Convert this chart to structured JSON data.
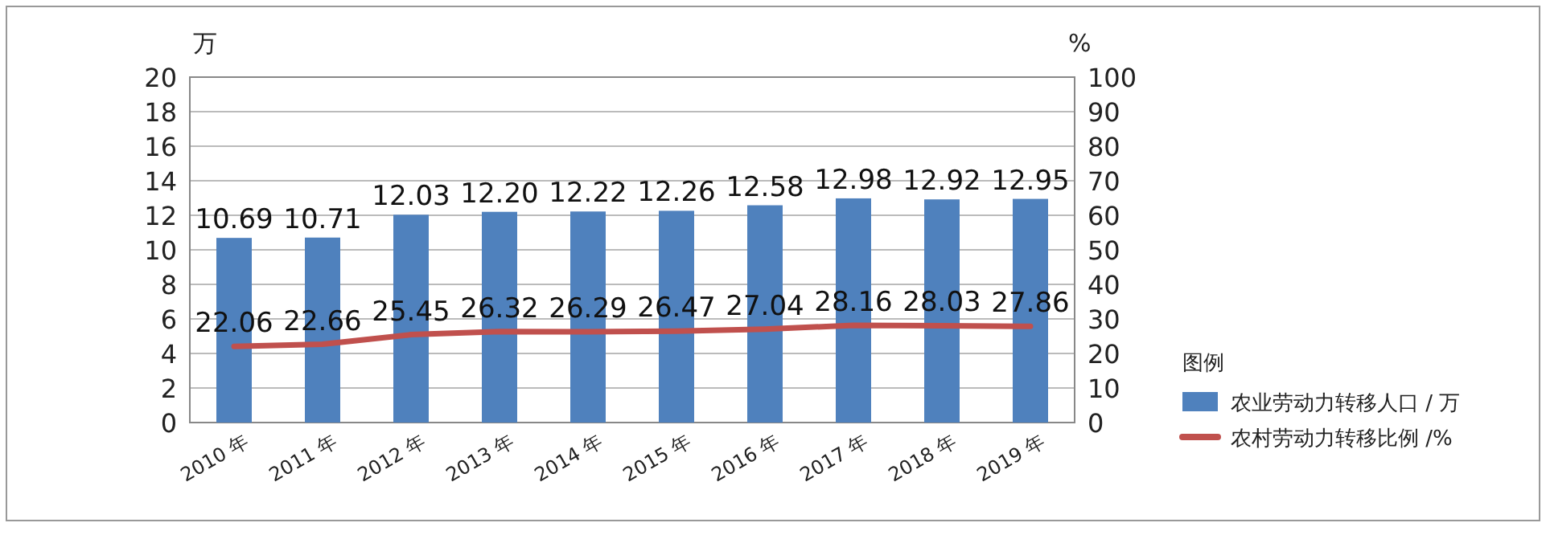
{
  "chart_data": {
    "type": "bar",
    "categories": [
      "2010 年",
      "2011 年",
      "2012 年",
      "2013 年",
      "2014 年",
      "2015 年",
      "2016 年",
      "2017 年",
      "2018 年",
      "2019 年"
    ],
    "ylabel": "万",
    "y2label": "%",
    "ylim": [
      0,
      20
    ],
    "yticks": [
      0,
      2,
      4,
      6,
      8,
      10,
      12,
      14,
      16,
      18,
      20
    ],
    "y2lim": [
      0,
      100
    ],
    "y2ticks": [
      0,
      10,
      20,
      30,
      40,
      50,
      60,
      70,
      80,
      90,
      100
    ],
    "grid": "y",
    "legend": "right",
    "legend_title": "图例",
    "series": [
      {
        "name": "农业劳动力转移人口 / 万",
        "color": "#4f81bd",
        "values": [
          10.69,
          10.71,
          12.03,
          12.2,
          12.22,
          12.26,
          12.58,
          12.98,
          12.92,
          12.95
        ],
        "value_labels": [
          "10.69",
          "10.71",
          "12.03",
          "12.20",
          "12.22",
          "12.26",
          "12.58",
          "12.98",
          "12.92",
          "12.95"
        ]
      },
      {
        "type": "line",
        "axis": "y2",
        "name": "农村劳动力转移比例 /%",
        "color": "#c0504d",
        "values": [
          22.06,
          22.66,
          25.45,
          26.32,
          26.29,
          26.47,
          27.04,
          28.16,
          28.03,
          27.86
        ],
        "value_labels": [
          "22.06",
          "22.66",
          "25.45",
          "26.32",
          "26.29",
          "26.47",
          "27.04",
          "28.16",
          "28.03",
          "27.86"
        ]
      }
    ]
  }
}
